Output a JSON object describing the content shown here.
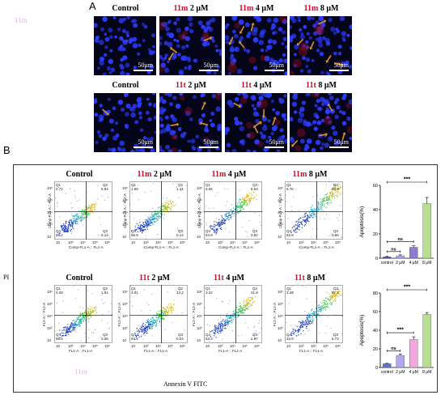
{
  "panel_a": {
    "letter": "A",
    "row1_labels": [
      {
        "prefix": "",
        "compound": "",
        "rest": "Control"
      },
      {
        "prefix": "",
        "compound": "11m",
        "rest": " 2 μM"
      },
      {
        "prefix": "",
        "compound": "11m",
        "rest": " 4 μM"
      },
      {
        "prefix": "",
        "compound": "11m",
        "rest": " 8 μM"
      }
    ],
    "row2_labels": [
      {
        "prefix": "",
        "compound": "",
        "rest": "Control"
      },
      {
        "prefix": "",
        "compound": "11t",
        "rest": " 2 μM"
      },
      {
        "prefix": "",
        "compound": "11t",
        "rest": " 4 μM"
      },
      {
        "prefix": "",
        "compound": "11t",
        "rest": " 8 μM"
      }
    ],
    "scale_text": "50μm",
    "colors": {
      "nuclei": "#2b3cff",
      "background": "#05051a",
      "arrow": "#e0902a",
      "compound": "#c8102e"
    }
  },
  "panel_b": {
    "letter": "B",
    "y_axis_name": "PI",
    "x_axis_name": "Annexin V FITC",
    "row1_titles": [
      {
        "compound": "",
        "rest": "Control"
      },
      {
        "compound": "11m",
        "rest": " 2 μM"
      },
      {
        "compound": "11m",
        "rest": " 4 μM"
      },
      {
        "compound": "11m",
        "rest": " 8 μM"
      }
    ],
    "row2_titles": [
      {
        "compound": "",
        "rest": "Control"
      },
      {
        "compound": "11t",
        "rest": " 2 μM"
      },
      {
        "compound": "11t",
        "rest": " 4 μM"
      },
      {
        "compound": "11t",
        "rest": " 8 μM"
      }
    ],
    "row1_axis": {
      "x": "Comp-FL1-A :: FL1-A",
      "y": "Comp-FL2-A :: FL2-A"
    },
    "row2_axis": {
      "x": "FL1-A :: FL1-A",
      "y": "FL2-A :: FL2-A"
    },
    "row1_quadrants": [
      {
        "q1": "Q1",
        "q1v": "0.72",
        "q2": "Q2",
        "q2v": "6.94",
        "q3": "Q3",
        "q3v": "5.14",
        "q4": "Q4",
        "q4v": "88.2"
      },
      {
        "q1": "Q1",
        "q1v": "1.69",
        "q2": "Q2",
        "q2v": "1.41",
        "q3": "Q3",
        "q3v": "0.14",
        "q4": "Q4",
        "q4v": "96.8"
      },
      {
        "q1": "Q1",
        "q1v": "5.66",
        "q2": "Q2",
        "q2v": "8.54",
        "q3": "Q3",
        "q3v": "0.82",
        "q4": "Q4",
        "q4v": "84.9"
      },
      {
        "q1": "Q1",
        "q1v": "5.76",
        "q2": "Q2",
        "q2v": "30.6",
        "q3": "Q3",
        "q3v": "0.86",
        "q4": "Q4",
        "q4v": "62.8"
      }
    ],
    "row2_quadrants": [
      {
        "q1": "Q1",
        "q1v": "0.28",
        "q2": "Q2",
        "q2v": "1.81",
        "q3": "Q3",
        "q3v": "2.36",
        "q4": "Q4",
        "q4v": "95.6"
      },
      {
        "q1": "Q1",
        "q1v": "3.01",
        "q2": "Q2",
        "q2v": "13.2",
        "q3": "Q3",
        "q3v": "0.24",
        "q4": "Q4",
        "q4v": "83.5"
      },
      {
        "q1": "Q1",
        "q1v": "3.22",
        "q2": "Q2",
        "q2v": "31.9",
        "q3": "Q3",
        "q3v": "1.67",
        "q4": "Q4",
        "q4v": "63.2"
      },
      {
        "q1": "Q1",
        "q1v": "3.23",
        "q2": "Q2",
        "q2v": "57.1",
        "q3": "Q3",
        "q3v": "5.72",
        "q4": "Q4",
        "q4v": "33.8"
      }
    ],
    "tick_labels": [
      "10",
      "10³",
      "10⁴",
      "10⁵",
      "10⁶"
    ],
    "watermark": "11m"
  },
  "chart_data": [
    {
      "type": "bar",
      "categories": [
        "control",
        "2 μM",
        "4 μM",
        "8 μM"
      ],
      "values": [
        1,
        2,
        9,
        45
      ],
      "errors": [
        0.5,
        0.8,
        1.2,
        5
      ],
      "ylabel": "Apoptosis(%)",
      "ylim": [
        0,
        60
      ],
      "yticks": [
        0,
        20,
        40,
        60
      ],
      "bar_colors": [
        "#2f3f8f",
        "#a8a6f0",
        "#8e7ccf",
        "#b7df8f"
      ],
      "significance": [
        {
          "from": 0,
          "to": 1,
          "label": "ns"
        },
        {
          "from": 0,
          "to": 2,
          "label": "ns"
        },
        {
          "from": 0,
          "to": 3,
          "label": "***"
        }
      ],
      "grid": false
    },
    {
      "type": "bar",
      "categories": [
        "control",
        "2 μM",
        "4 μM",
        "8 μM"
      ],
      "values": [
        4,
        13,
        30,
        57
      ],
      "errors": [
        0.5,
        1.5,
        3,
        2
      ],
      "ylabel": "Apoptosis(%)",
      "ylim": [
        0,
        80
      ],
      "yticks": [
        0,
        20,
        40,
        60,
        80
      ],
      "bar_colors": [
        "#5b79c8",
        "#b3a7f2",
        "#f2a8df",
        "#b7df8f"
      ],
      "significance": [
        {
          "from": 0,
          "to": 1,
          "label": "ns"
        },
        {
          "from": 0,
          "to": 2,
          "label": "***"
        },
        {
          "from": 0,
          "to": 3,
          "label": "***"
        }
      ],
      "grid": false
    }
  ]
}
